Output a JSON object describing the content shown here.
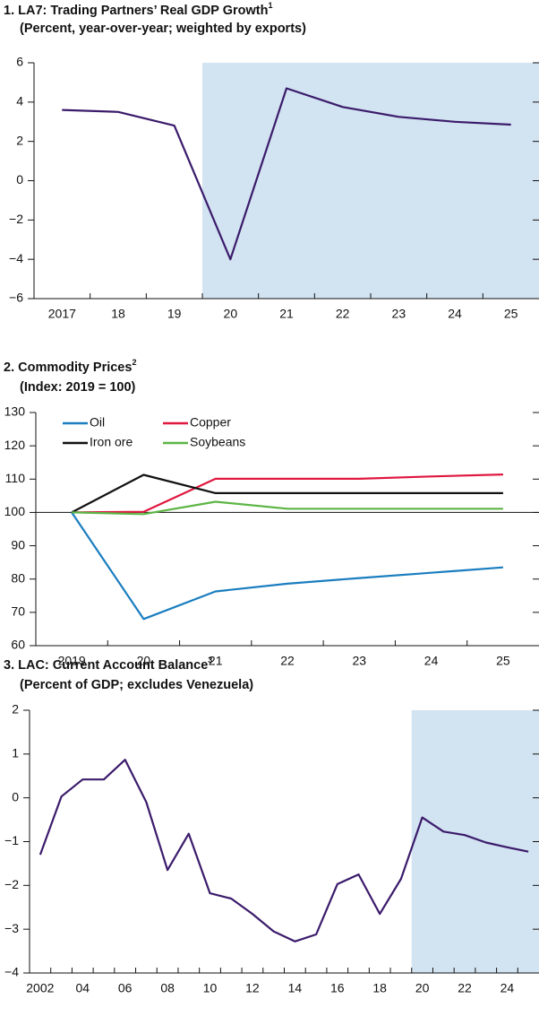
{
  "chart_data": [
    {
      "type": "line",
      "title": "1. LA7: Trading Partners’ Real GDP Growth",
      "title_note": "1",
      "subtitle": "(Percent, year-over-year; weighted by exports)",
      "categories": [
        "2017",
        "18",
        "19",
        "20",
        "21",
        "22",
        "23",
        "24",
        "25"
      ],
      "series": [
        {
          "name": "Real GDP growth",
          "color": "#3b1b6b",
          "values": [
            3.6,
            3.5,
            2.8,
            -4.0,
            4.7,
            3.75,
            3.25,
            3.0,
            2.85
          ]
        }
      ],
      "ylim": [
        -6,
        6
      ],
      "yticks": [
        6,
        4,
        2,
        0,
        {
          "value": -2,
          "label": "−2"
        },
        {
          "value": -4,
          "label": "−4"
        },
        {
          "value": -6,
          "label": "−6"
        }
      ],
      "shade_from_index": 3,
      "shade_color": "#d2e3f1",
      "legend": "none"
    },
    {
      "type": "line",
      "title": "2. Commodity Prices",
      "title_note": "2",
      "subtitle": "(Index: 2019 = 100)",
      "categories": [
        "2019",
        "20",
        "21",
        "22",
        "23",
        "24",
        "25"
      ],
      "series": [
        {
          "name": "Oil",
          "color": "#1a7dbf",
          "values": [
            100,
            68,
            76.3,
            78.6,
            80.3,
            81.9,
            83.5
          ]
        },
        {
          "name": "Copper",
          "color": "#e0173f",
          "values": [
            100,
            100.2,
            110.1,
            110.1,
            110.1,
            110.8,
            111.4
          ]
        },
        {
          "name": "Iron ore",
          "color": "#111111",
          "values": [
            100,
            111.3,
            105.8,
            105.8,
            105.8,
            105.8,
            105.8
          ]
        },
        {
          "name": "Soybeans",
          "color": "#5cb545",
          "values": [
            100,
            99.5,
            103.2,
            101.1,
            101.1,
            101.1,
            101.1
          ]
        }
      ],
      "ylim": [
        60,
        130
      ],
      "yticks": [
        130,
        120,
        110,
        100,
        90,
        80,
        70,
        60
      ],
      "reference_line": 100,
      "legend": "upper left"
    },
    {
      "type": "line",
      "title": "3. LAC: Current Account Balance",
      "title_note": "3",
      "subtitle": "(Percent of GDP; excludes Venezuela)",
      "categories": [
        "2002",
        null,
        "04",
        null,
        "06",
        null,
        "08",
        null,
        "10",
        null,
        "12",
        null,
        "14",
        null,
        "16",
        null,
        "18",
        null,
        "20",
        null,
        "22",
        null,
        "24",
        null
      ],
      "series": [
        {
          "name": "Current account balance",
          "color": "#3b1b6b",
          "values": [
            -1.3,
            0.03,
            0.42,
            0.42,
            0.87,
            -0.1,
            -1.65,
            -0.82,
            -2.18,
            -2.3,
            -2.65,
            -3.05,
            -3.28,
            -3.12,
            -1.97,
            -1.75,
            -2.65,
            -1.85,
            -0.45,
            -0.77,
            -0.85,
            -1.02,
            -1.13,
            -1.23
          ]
        }
      ],
      "ylim": [
        -4,
        2
      ],
      "yticks": [
        2,
        1,
        0,
        {
          "value": -1,
          "label": "−1"
        },
        {
          "value": -2,
          "label": "−2"
        },
        {
          "value": -3,
          "label": "−3"
        },
        {
          "value": -4,
          "label": "−4"
        }
      ],
      "shade_from_index": 18,
      "shade_color": "#d2e3f1",
      "legend": "none"
    }
  ]
}
